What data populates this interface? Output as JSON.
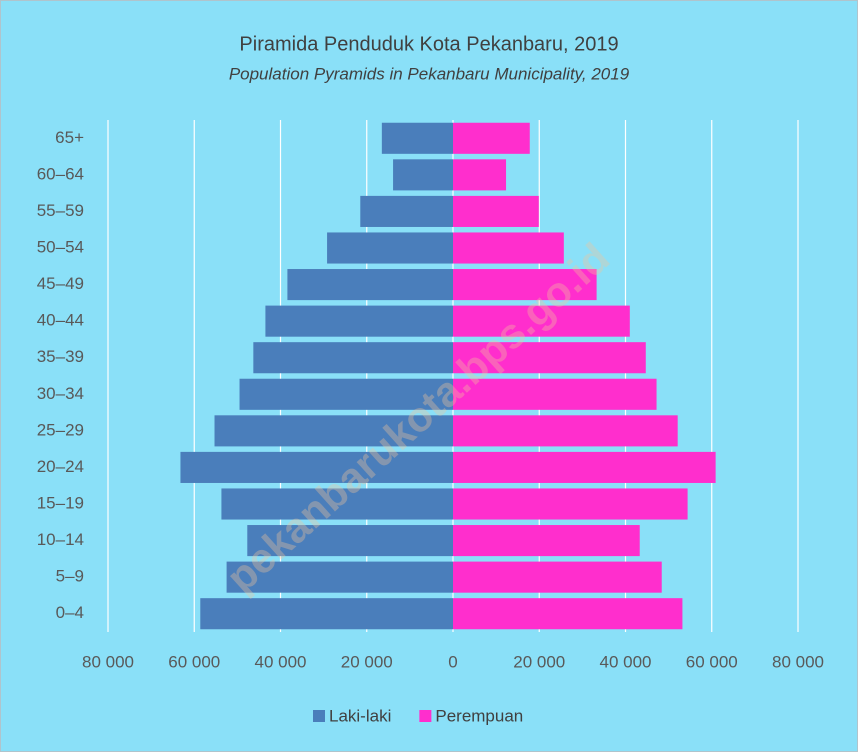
{
  "chart_data": {
    "type": "pyramid",
    "title": "Piramida Penduduk Kota Pekanbaru, 2019",
    "subtitle": "Population Pyramids in Pekanbaru Municipality, 2019",
    "watermark": "pekanbarukota.bps.go.id",
    "categories": [
      "0–4",
      "5–9",
      "10–14",
      "15–19",
      "20–24",
      "25–29",
      "30–34",
      "35–39",
      "40–44",
      "45–49",
      "50–54",
      "55–59",
      "60–64",
      "65+"
    ],
    "series": [
      {
        "name": "Laki-laki",
        "color": "#4a7ebb",
        "values": [
          -58600,
          -52500,
          -47700,
          -53700,
          -63200,
          -55300,
          -49500,
          -46300,
          -43500,
          -38400,
          -29200,
          -21500,
          -13900,
          -16500
        ]
      },
      {
        "name": "Perempuan",
        "color": "#ff2ecd",
        "values": [
          53200,
          48400,
          43300,
          54400,
          60900,
          52100,
          47200,
          44700,
          41000,
          33300,
          25700,
          19900,
          12300,
          17800
        ]
      }
    ],
    "xlim": [
      -80000,
      80000
    ],
    "xticks": [
      {
        "value": -80000,
        "label": "80 000"
      },
      {
        "value": -60000,
        "label": "60 000"
      },
      {
        "value": -40000,
        "label": "40 000"
      },
      {
        "value": -20000,
        "label": "20 000"
      },
      0,
      {
        "value": 20000,
        "label": "20 000"
      },
      {
        "value": 40000,
        "label": "40 000"
      },
      {
        "value": 60000,
        "label": "60 000"
      },
      {
        "value": 80000,
        "label": "80 000"
      }
    ],
    "grid": true,
    "legend": "bottom"
  }
}
